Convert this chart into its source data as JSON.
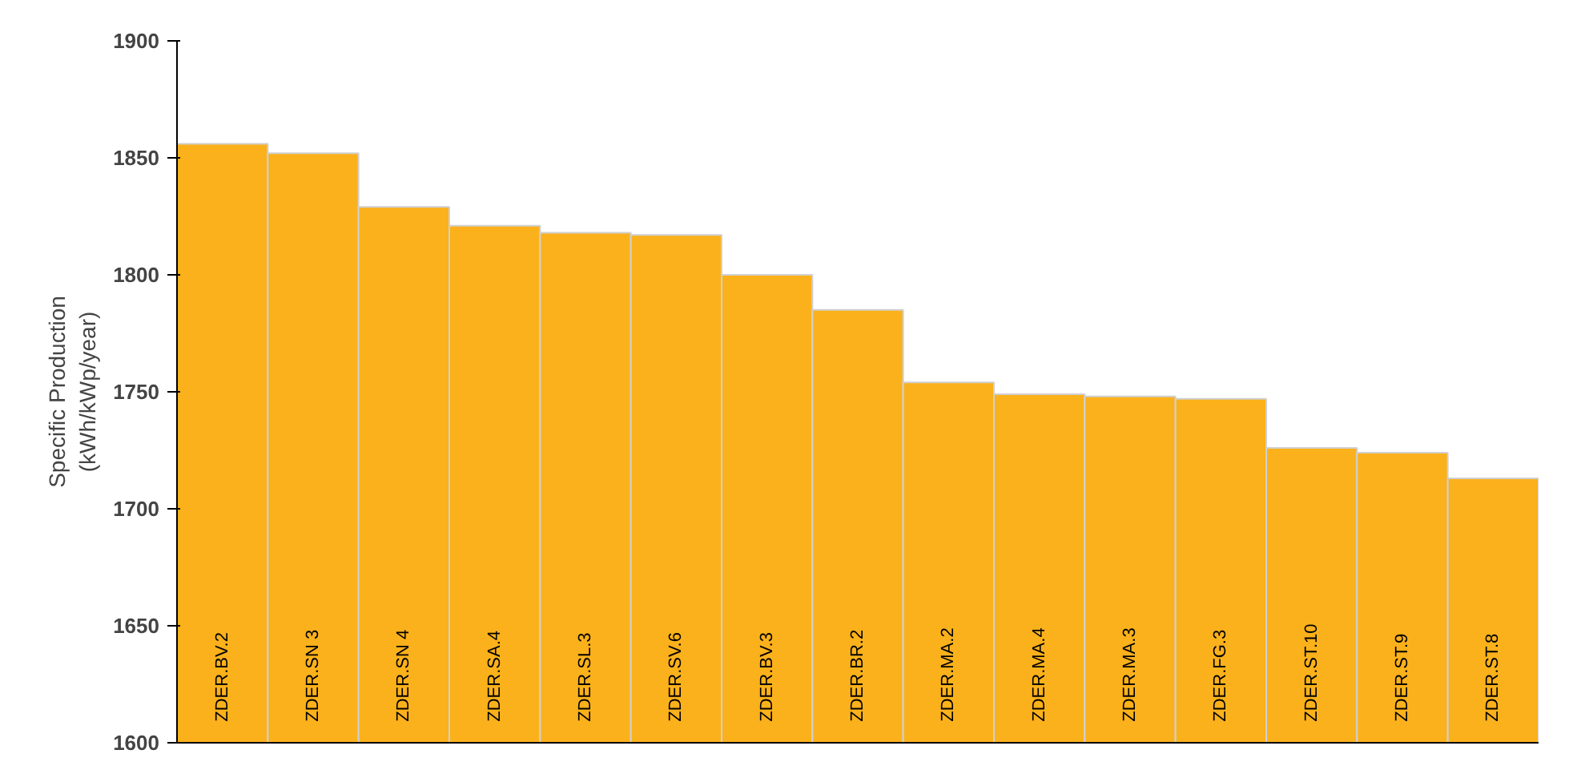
{
  "chart_data": {
    "type": "bar",
    "ylabel": "Specific Production\n(kWh/kWp/year)",
    "categories": [
      "ZDER.BV.2",
      "ZDER.SN 3",
      "ZDER.SN 4",
      "ZDER.SA.4",
      "ZDER.SL.3",
      "ZDER.SV.6",
      "ZDER.BV.3",
      "ZDER.BR.2",
      "ZDER.MA.2",
      "ZDER.MA.4",
      "ZDER.MA.3",
      "ZDER.FG.3",
      "ZDER.ST.10",
      "ZDER.ST.9",
      "ZDER.ST.8"
    ],
    "values": [
      1856,
      1852,
      1829,
      1821,
      1818,
      1817,
      1800,
      1785,
      1754,
      1749,
      1748,
      1747,
      1726,
      1724,
      1713
    ],
    "color": "#fbb11b",
    "ylim": [
      1600,
      1900
    ],
    "yticks": [
      1600,
      1650,
      1700,
      1750,
      1800,
      1850,
      1900
    ],
    "grid": false
  }
}
